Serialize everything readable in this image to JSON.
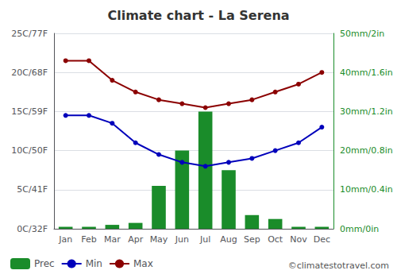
{
  "chart_data": {
    "type": "bar",
    "title": "Climate chart - La Serena",
    "categories": [
      "Jan",
      "Feb",
      "Mar",
      "Apr",
      "May",
      "Jun",
      "Jul",
      "Aug",
      "Sep",
      "Oct",
      "Nov",
      "Dec"
    ],
    "series": [
      {
        "name": "Prec",
        "type": "bar",
        "color": "#1a8c2a",
        "axis": "y2",
        "values": [
          0.5,
          0.5,
          1.0,
          1.5,
          11,
          20,
          30,
          15,
          3.5,
          2.5,
          0.5,
          0.5
        ]
      },
      {
        "name": "Min",
        "type": "line",
        "color": "#0000bb",
        "marker": "circle",
        "values": [
          14.5,
          14.5,
          13.5,
          11.0,
          9.5,
          8.5,
          8.0,
          8.5,
          9.0,
          10.0,
          11.0,
          13.0
        ]
      },
      {
        "name": "Max",
        "type": "line",
        "color": "#8b0000",
        "marker": "circle",
        "values": [
          21.5,
          21.5,
          19.0,
          17.5,
          16.5,
          16.0,
          15.5,
          16.0,
          16.5,
          17.5,
          18.5,
          20.0
        ]
      }
    ],
    "ylim": [
      0,
      25
    ],
    "yticks": [
      {
        "value": 0,
        "label": "0C/32F"
      },
      {
        "value": 5,
        "label": "5C/41F"
      },
      {
        "value": 10,
        "label": "10C/50F"
      },
      {
        "value": 15,
        "label": "15C/59F"
      },
      {
        "value": 20,
        "label": "20C/68F"
      },
      {
        "value": 25,
        "label": "25C/77F"
      }
    ],
    "y2lim": [
      0,
      50
    ],
    "y2ticks": [
      {
        "value": 0,
        "label": "0mm/0in"
      },
      {
        "value": 10,
        "label": "10mm/0.4in"
      },
      {
        "value": 20,
        "label": "20mm/0.8in"
      },
      {
        "value": 30,
        "label": "30mm/1.2in"
      },
      {
        "value": 40,
        "label": "40mm/1.6in"
      },
      {
        "value": 50,
        "label": "50mm/2in"
      }
    ],
    "grid": true,
    "legend": "lower left",
    "annotations": [
      "©climatestotravel.com"
    ]
  }
}
